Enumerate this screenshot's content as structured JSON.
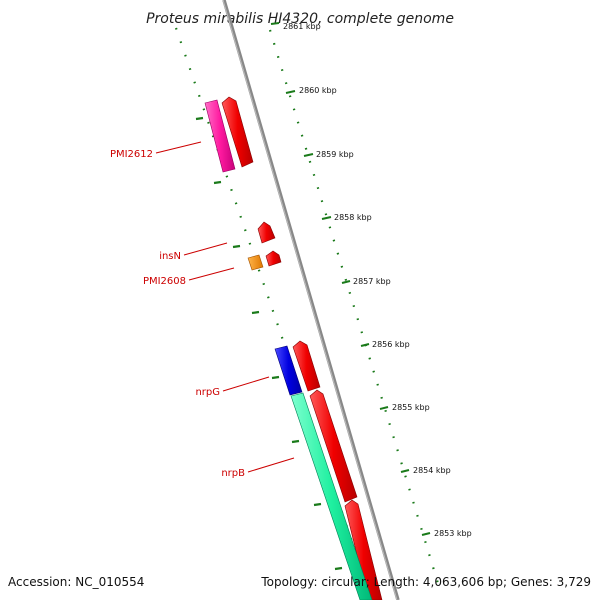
{
  "title": "Proteus mirabilis HI4320, complete genome",
  "footer": {
    "accession": "Accession: NC_010554",
    "topology": "Topology: circular; Length: 4,063,606 bp; Genes: 3,729"
  },
  "ticks": [
    {
      "label": "2861 kbp"
    },
    {
      "label": "2860 kbp"
    },
    {
      "label": "2859 kbp"
    },
    {
      "label": "2858 kbp"
    },
    {
      "label": "2857 kbp"
    },
    {
      "label": "2856 kbp"
    },
    {
      "label": "2855 kbp"
    },
    {
      "label": "2854 kbp"
    },
    {
      "label": "2853 kbp"
    }
  ],
  "genes": [
    {
      "name": "PMI2612",
      "color": "#ff1493"
    },
    {
      "name": "insN",
      "color": "#ee0000"
    },
    {
      "name": "PMI2608",
      "color": "#ff8c00"
    },
    {
      "name": "nrpG",
      "color": "#0000dd"
    },
    {
      "name": "nrpB",
      "color": "#00e68c"
    }
  ],
  "colors": {
    "backbone": "#888888",
    "cds_forward": "#ee0000",
    "tick_marks": "#1a7a1a",
    "label_text": "#cc0000"
  }
}
